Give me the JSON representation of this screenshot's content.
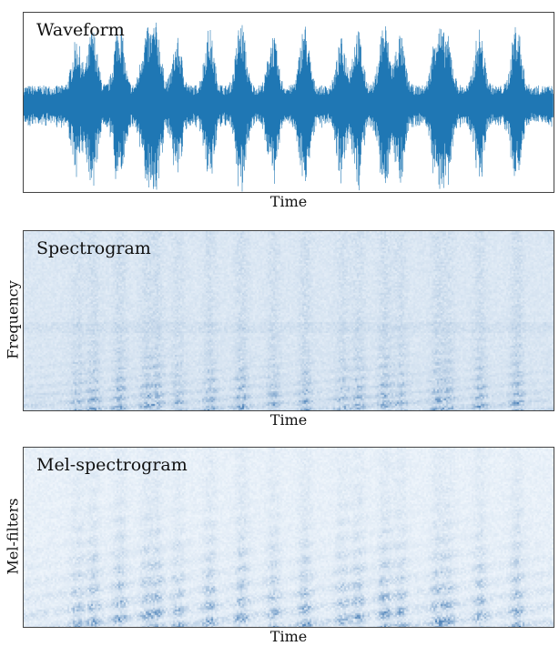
{
  "chart_data": [
    {
      "type": "line",
      "title": "Waveform",
      "xlabel": "Time",
      "ylabel": "",
      "grid": false,
      "color": "#1f77b4"
    },
    {
      "type": "heatmap",
      "title": "Spectrogram",
      "xlabel": "Time",
      "ylabel": "Frequency",
      "grid": false,
      "colormap": "Blues"
    },
    {
      "type": "heatmap",
      "title": "Mel-spectrogram",
      "xlabel": "Time",
      "ylabel": "Mel-filters",
      "grid": false,
      "colormap": "Blues"
    }
  ]
}
